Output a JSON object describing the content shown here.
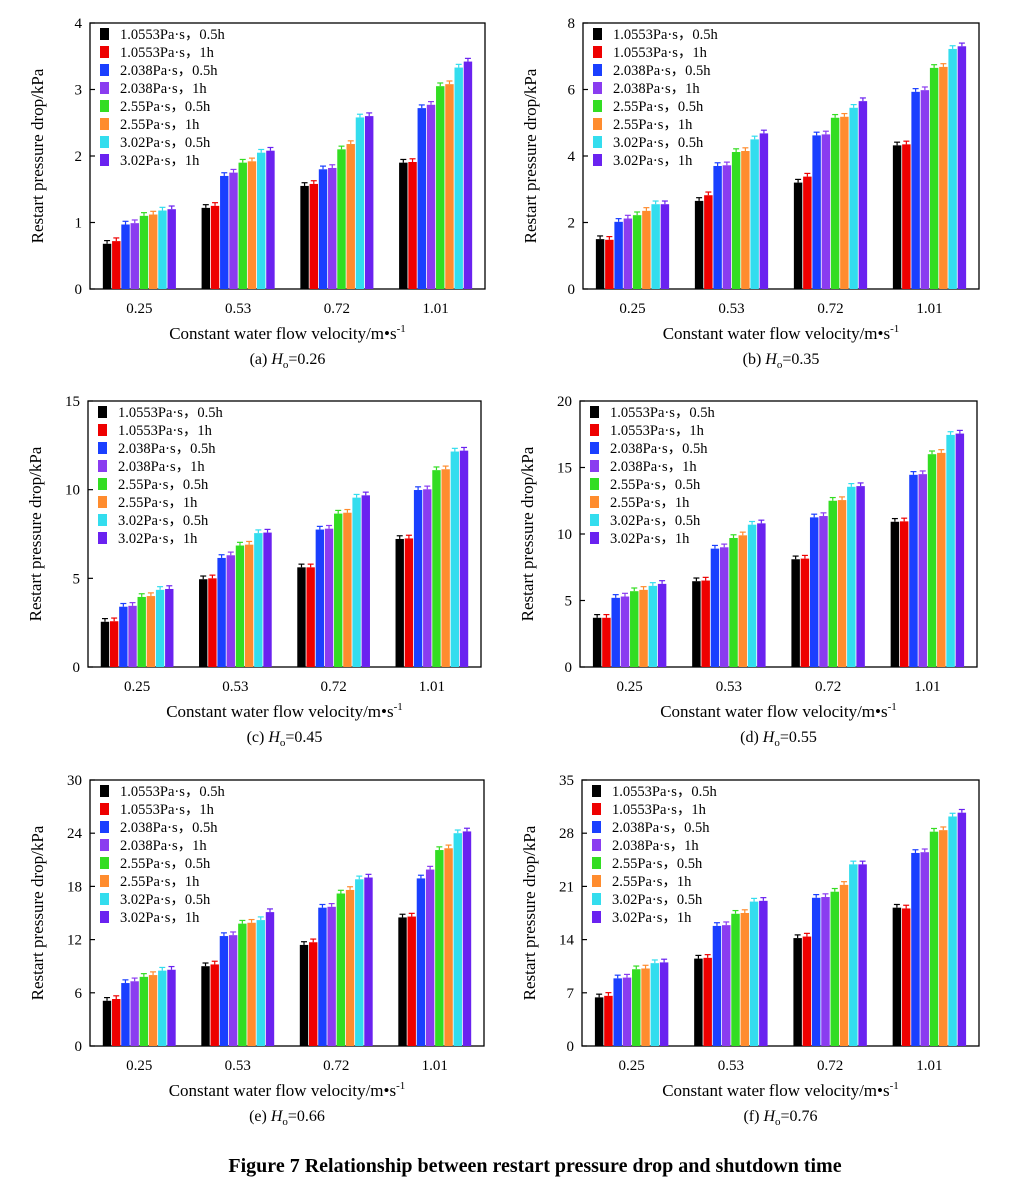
{
  "figure_title": "Figure 7 Relationship between restart pressure drop and shutdown time",
  "series_colors": [
    "#000000",
    "#ee0000",
    "#1a3fff",
    "#8a3cf0",
    "#33dd22",
    "#ff8c2e",
    "#33ddee",
    "#6a22f0"
  ],
  "chart_data": [
    {
      "type": "bar",
      "caption_prefix": "(a) ",
      "caption_var": "H",
      "caption_sub": "o",
      "caption_value": "=0.26",
      "xlabel": "Constant water flow velocity/m•s",
      "xlabel_sup": "-1",
      "ylabel": "Restart pressure drop/kPa",
      "categories": [
        "0.25",
        "0.53",
        "0.72",
        "1.01"
      ],
      "ylim": [
        0,
        4
      ],
      "yticks": [
        "0",
        "1",
        "2",
        "3",
        "4"
      ],
      "legend": "top-left",
      "series": [
        {
          "name": "1.0553Pa·s，0.5h",
          "values": [
            0.68,
            1.22,
            1.55,
            1.9
          ]
        },
        {
          "name": "1.0553Pa·s，1h",
          "values": [
            0.72,
            1.25,
            1.58,
            1.91
          ]
        },
        {
          "name": "2.038Pa·s，0.5h",
          "values": [
            0.97,
            1.7,
            1.8,
            2.72
          ]
        },
        {
          "name": "2.038Pa·s，1h",
          "values": [
            0.99,
            1.75,
            1.82,
            2.77
          ]
        },
        {
          "name": "2.55Pa·s，0.5h",
          "values": [
            1.1,
            1.9,
            2.1,
            3.05
          ]
        },
        {
          "name": "2.55Pa·s，1h",
          "values": [
            1.12,
            1.92,
            2.18,
            3.08
          ]
        },
        {
          "name": "3.02Pa·s，0.5h",
          "values": [
            1.18,
            2.05,
            2.58,
            3.33
          ]
        },
        {
          "name": "3.02Pa·s，1h",
          "values": [
            1.2,
            2.08,
            2.6,
            3.42
          ]
        }
      ]
    },
    {
      "type": "bar",
      "caption_prefix": "(b) ",
      "caption_var": "H",
      "caption_sub": "o",
      "caption_value": "=0.35",
      "xlabel": "Constant water flow velocity/m•s",
      "xlabel_sup": "-1",
      "ylabel": "Restart pressure drop/kPa",
      "categories": [
        "0.25",
        "0.53",
        "0.72",
        "1.01"
      ],
      "ylim": [
        0,
        8
      ],
      "yticks": [
        "0",
        "2",
        "4",
        "6",
        "8"
      ],
      "legend": "top-left",
      "series": [
        {
          "name": "1.0553Pa·s，0.5h",
          "values": [
            1.5,
            2.65,
            3.2,
            4.32
          ]
        },
        {
          "name": "1.0553Pa·s，1h",
          "values": [
            1.48,
            2.82,
            3.38,
            4.35
          ]
        },
        {
          "name": "2.038Pa·s，0.5h",
          "values": [
            2.02,
            3.7,
            4.62,
            5.93
          ]
        },
        {
          "name": "2.038Pa·s，1h",
          "values": [
            2.12,
            3.72,
            4.65,
            5.98
          ]
        },
        {
          "name": "2.55Pa·s，0.5h",
          "values": [
            2.22,
            4.12,
            5.15,
            6.65
          ]
        },
        {
          "name": "2.55Pa·s，1h",
          "values": [
            2.35,
            4.15,
            5.18,
            6.68
          ]
        },
        {
          "name": "3.02Pa·s，0.5h",
          "values": [
            2.55,
            4.5,
            5.45,
            7.22
          ]
        },
        {
          "name": "3.02Pa·s，1h",
          "values": [
            2.55,
            4.68,
            5.65,
            7.3
          ]
        }
      ]
    },
    {
      "type": "bar",
      "caption_prefix": "(c) ",
      "caption_var": "H",
      "caption_sub": "o",
      "caption_value": "=0.45",
      "xlabel": "Constant water flow velocity/m•s",
      "xlabel_sup": "-1",
      "ylabel": "Restart pressure drop/kPa",
      "categories": [
        "0.25",
        "0.53",
        "0.72",
        "1.01"
      ],
      "ylim": [
        0,
        15
      ],
      "yticks": [
        "0",
        "5",
        "10",
        "15"
      ],
      "legend": "top-left",
      "series": [
        {
          "name": "1.0553Pa·s，0.5h",
          "values": [
            2.55,
            4.95,
            5.62,
            7.22
          ]
        },
        {
          "name": "1.0553Pa·s，1h",
          "values": [
            2.58,
            5.0,
            5.62,
            7.25
          ]
        },
        {
          "name": "2.038Pa·s，0.5h",
          "values": [
            3.4,
            6.15,
            7.75,
            9.98
          ]
        },
        {
          "name": "2.038Pa·s，1h",
          "values": [
            3.45,
            6.3,
            7.8,
            10.02
          ]
        },
        {
          "name": "2.55Pa·s，0.5h",
          "values": [
            3.95,
            6.85,
            8.65,
            11.1
          ]
        },
        {
          "name": "2.55Pa·s，1h",
          "values": [
            4.0,
            6.9,
            8.7,
            11.15
          ]
        },
        {
          "name": "3.02Pa·s，0.5h",
          "values": [
            4.35,
            7.55,
            9.55,
            12.15
          ]
        },
        {
          "name": "3.02Pa·s，1h",
          "values": [
            4.4,
            7.58,
            9.68,
            12.2
          ]
        }
      ]
    },
    {
      "type": "bar",
      "caption_prefix": "(d) ",
      "caption_var": "H",
      "caption_sub": "o",
      "caption_value": "=0.55",
      "xlabel": "Constant water flow velocity/m•s",
      "xlabel_sup": "-1",
      "ylabel": "Restart pressure drop/kPa",
      "categories": [
        "0.25",
        "0.53",
        "0.72",
        "1.01"
      ],
      "ylim": [
        0,
        20
      ],
      "yticks": [
        "0",
        "5",
        "10",
        "15",
        "20"
      ],
      "legend": "top-left",
      "series": [
        {
          "name": "1.0553Pa·s，0.5h",
          "values": [
            3.7,
            6.45,
            8.1,
            10.92
          ]
        },
        {
          "name": "1.0553Pa·s，1h",
          "values": [
            3.7,
            6.5,
            8.15,
            10.95
          ]
        },
        {
          "name": "2.038Pa·s，0.5h",
          "values": [
            5.2,
            8.9,
            11.25,
            14.45
          ]
        },
        {
          "name": "2.038Pa·s，1h",
          "values": [
            5.3,
            9.0,
            11.35,
            14.5
          ]
        },
        {
          "name": "2.55Pa·s，0.5h",
          "values": [
            5.7,
            9.7,
            12.5,
            16.0
          ]
        },
        {
          "name": "2.55Pa·s，1h",
          "values": [
            5.8,
            9.9,
            12.55,
            16.1
          ]
        },
        {
          "name": "3.02Pa·s，0.5h",
          "values": [
            6.1,
            10.7,
            13.55,
            17.45
          ]
        },
        {
          "name": "3.02Pa·s，1h",
          "values": [
            6.25,
            10.8,
            13.6,
            17.55
          ]
        }
      ]
    },
    {
      "type": "bar",
      "caption_prefix": "(e) ",
      "caption_var": "H",
      "caption_sub": "o",
      "caption_value": "=0.66",
      "xlabel": "Constant water flow velocity/m•s",
      "xlabel_sup": "-1",
      "ylabel": "Restart pressure drop/kPa",
      "categories": [
        "0.25",
        "0.53",
        "0.72",
        "1.01"
      ],
      "ylim": [
        0,
        30
      ],
      "yticks": [
        "0",
        "6",
        "12",
        "18",
        "24",
        "30"
      ],
      "legend": "top-left",
      "series": [
        {
          "name": "1.0553Pa·s，0.5h",
          "values": [
            5.1,
            9.0,
            11.4,
            14.5
          ]
        },
        {
          "name": "1.0553Pa·s，1h",
          "values": [
            5.3,
            9.2,
            11.7,
            14.6
          ]
        },
        {
          "name": "2.038Pa·s，0.5h",
          "values": [
            7.1,
            12.4,
            15.6,
            18.9
          ]
        },
        {
          "name": "2.038Pa·s，1h",
          "values": [
            7.3,
            12.5,
            15.7,
            19.9
          ]
        },
        {
          "name": "2.55Pa·s，0.5h",
          "values": [
            7.8,
            13.8,
            17.2,
            22.1
          ]
        },
        {
          "name": "2.55Pa·s，1h",
          "values": [
            8.0,
            13.9,
            17.6,
            22.3
          ]
        },
        {
          "name": "3.02Pa·s，0.5h",
          "values": [
            8.5,
            14.2,
            18.8,
            24.0
          ]
        },
        {
          "name": "3.02Pa·s，1h",
          "values": [
            8.6,
            15.1,
            19.0,
            24.2
          ]
        }
      ]
    },
    {
      "type": "bar",
      "caption_prefix": "(f) ",
      "caption_var": "H",
      "caption_sub": "o",
      "caption_value": "=0.76",
      "xlabel": "Constant water flow velocity/m•s",
      "xlabel_sup": "-1",
      "ylabel": "Restart pressure drop/kPa",
      "categories": [
        "0.25",
        "0.53",
        "0.72",
        "1.01"
      ],
      "ylim": [
        0,
        35
      ],
      "yticks": [
        "0",
        "7",
        "14",
        "21",
        "28",
        "35"
      ],
      "legend": "top-left",
      "series": [
        {
          "name": "1.0553Pa·s，0.5h",
          "values": [
            6.4,
            11.5,
            14.2,
            18.2
          ]
        },
        {
          "name": "1.0553Pa·s，1h",
          "values": [
            6.6,
            11.6,
            14.4,
            18.1
          ]
        },
        {
          "name": "2.038Pa·s，0.5h",
          "values": [
            8.9,
            15.8,
            19.5,
            25.4
          ]
        },
        {
          "name": "2.038Pa·s，1h",
          "values": [
            9.0,
            15.9,
            19.6,
            25.5
          ]
        },
        {
          "name": "2.55Pa·s，0.5h",
          "values": [
            10.1,
            17.4,
            20.3,
            28.2
          ]
        },
        {
          "name": "2.55Pa·s，1h",
          "values": [
            10.2,
            17.5,
            21.2,
            28.4
          ]
        },
        {
          "name": "3.02Pa·s，0.5h",
          "values": [
            10.9,
            19.0,
            23.9,
            30.2
          ]
        },
        {
          "name": "3.02Pa·s，1h",
          "values": [
            11.0,
            19.1,
            23.9,
            30.7
          ]
        }
      ]
    }
  ]
}
